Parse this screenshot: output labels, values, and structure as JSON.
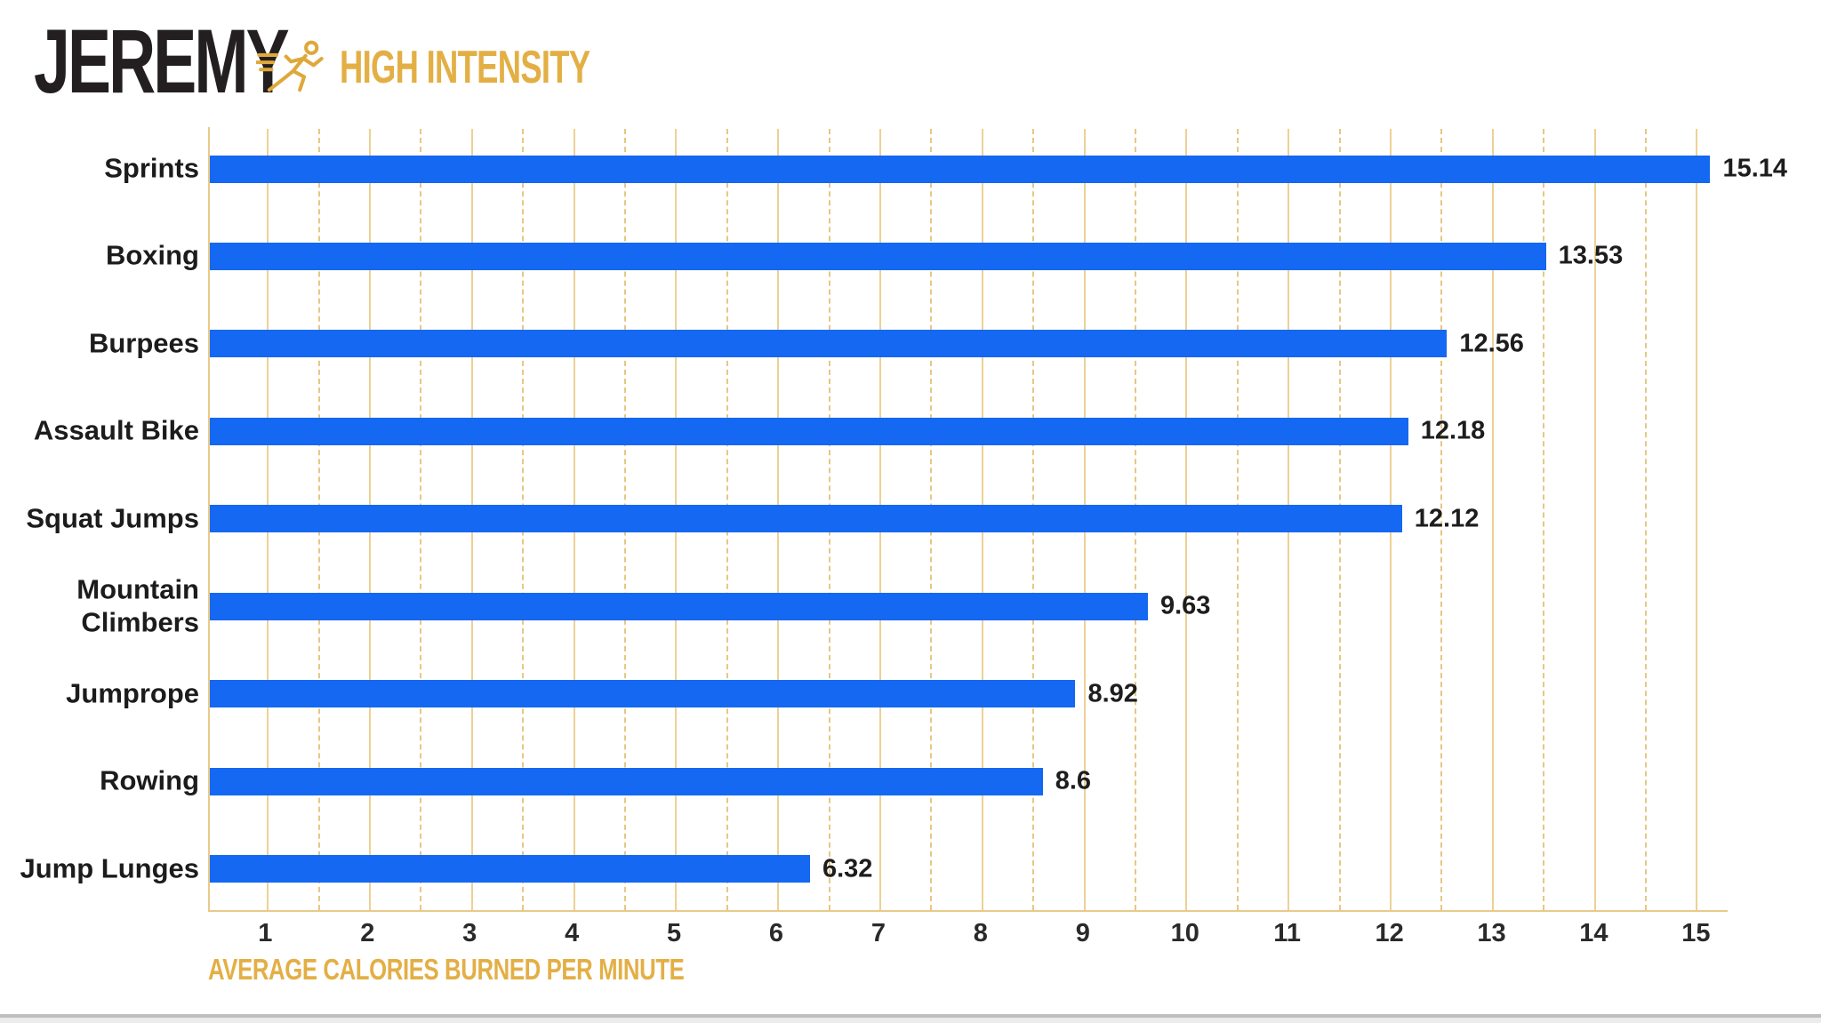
{
  "header": {
    "name": "JEREMY",
    "badge": "HIGH INTENSITY",
    "icon": "runner-icon"
  },
  "chart_data": {
    "type": "bar",
    "orientation": "horizontal",
    "categories": [
      "Sprints",
      "Boxing",
      "Burpees",
      "Assault Bike",
      "Squat Jumps",
      "Mountain Climbers",
      "Jumprope",
      "Rowing",
      "Jump Lunges"
    ],
    "values": [
      15.14,
      13.53,
      12.56,
      12.18,
      12.12,
      9.63,
      8.92,
      8.6,
      6.32
    ],
    "value_labels": [
      "15.14",
      "13.53",
      "12.56",
      "12.18",
      "12.12",
      "9.63",
      "8.92",
      "8.6",
      "6.32"
    ],
    "title": "",
    "xlabel": "AVERAGE CALORIES BURNED PER MINUTE",
    "ylabel": "",
    "x_ticks": [
      1,
      2,
      3,
      4,
      5,
      6,
      7,
      8,
      9,
      10,
      11,
      12,
      13,
      14,
      15
    ],
    "x_range_at_plot_edges": [
      0.44,
      15.31
    ],
    "gridlines": {
      "solid_at": "integers",
      "dashed_at": "half-integers",
      "grid_step": 0.5
    },
    "legend": null
  },
  "colors": {
    "bar": "#1468F2",
    "grid": "#EDD195",
    "grid_dash": "#E7C784",
    "axis": "#E8CB8B",
    "gold": "#E3AF45",
    "icon_gold": "#DFA83B",
    "ink": "#231F20",
    "label": "#1C1C1C"
  }
}
